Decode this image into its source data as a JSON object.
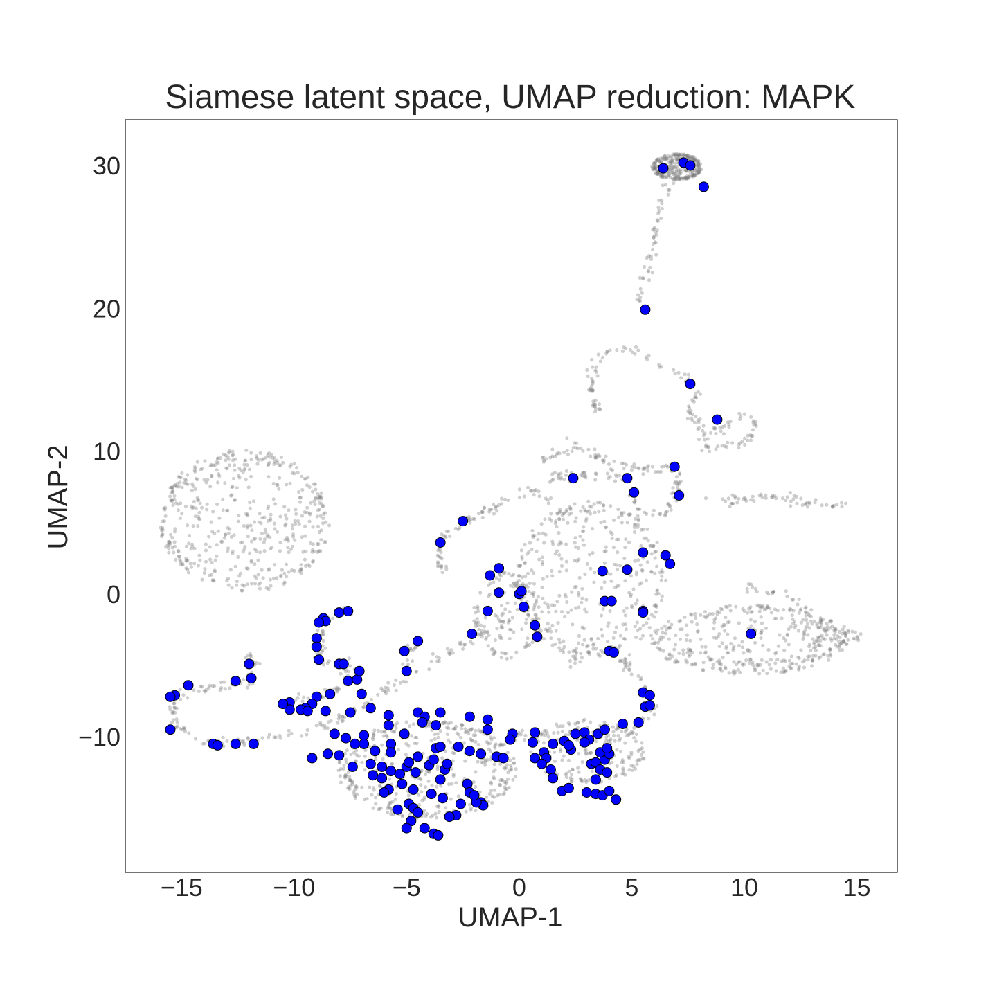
{
  "chart_data": {
    "type": "scatter",
    "title": "Siamese latent space, UMAP reduction: MAPK",
    "xlabel": "UMAP-1",
    "ylabel": "UMAP-2",
    "xlim": [
      -17.5,
      16.8
    ],
    "ylim": [
      -19.5,
      33.2
    ],
    "xticks": [
      -15,
      -10,
      -5,
      0,
      5,
      10,
      15
    ],
    "yticks": [
      -10,
      0,
      10,
      20,
      30
    ],
    "xtick_labels": [
      "−15",
      "−10",
      "−5",
      "0",
      "5",
      "10",
      "15"
    ],
    "ytick_labels": [
      "−10",
      "0",
      "10",
      "20",
      "30"
    ],
    "grid": false,
    "colors": {
      "background_points": "#808080",
      "highlight_points": "#0000ff",
      "highlight_edge": "#000000"
    },
    "background_clusters": [
      {
        "type": "ellipse",
        "cx": -12.2,
        "cy": 5.1,
        "rx": 3.7,
        "ry": 4.9,
        "n": 500
      },
      {
        "type": "ellipse",
        "cx": 7.0,
        "cy": 29.9,
        "rx": 1.1,
        "ry": 0.9,
        "n": 300
      },
      {
        "type": "ellipse",
        "cx": -4.1,
        "cy": -12.3,
        "rx": 3.9,
        "ry": 3.4,
        "n": 450
      },
      {
        "type": "ellipse",
        "cx": 3.2,
        "cy": 1.0,
        "rx": 3.3,
        "ry": 5.4,
        "n": 400
      },
      {
        "type": "ellipse",
        "cx": 10.2,
        "cy": -3.2,
        "rx": 4.3,
        "ry": 2.4,
        "n": 350
      },
      {
        "type": "ellipse",
        "cx": 3.0,
        "cy": -11.0,
        "rx": 2.6,
        "ry": 2.2,
        "n": 180
      },
      {
        "type": "ellipse",
        "cx": -0.5,
        "cy": -1.5,
        "rx": 1.5,
        "ry": 3.0,
        "n": 120
      },
      {
        "type": "path",
        "points": [
          [
            -15.6,
            -8.8
          ],
          [
            -15.1,
            -7.2
          ],
          [
            -13.5,
            -6.5
          ],
          [
            -12.0,
            -6.2
          ],
          [
            -11.8,
            -5.0
          ],
          [
            -11.9,
            -3.9
          ]
        ],
        "n": 70
      },
      {
        "type": "path",
        "points": [
          [
            -15.5,
            -8.8
          ],
          [
            -14.3,
            -10.3
          ],
          [
            -12.8,
            -10.4
          ],
          [
            -11.7,
            -10.2
          ],
          [
            -9.3,
            -9.6
          ],
          [
            -7.0,
            -8.0
          ],
          [
            -5.0,
            -5.8
          ],
          [
            -3.0,
            -4.0
          ],
          [
            -1.5,
            -2.5
          ],
          [
            -0.5,
            -2.0
          ]
        ],
        "n": 140
      },
      {
        "type": "path",
        "points": [
          [
            -10.4,
            -7.8
          ],
          [
            -9.5,
            -7.2
          ],
          [
            -8.3,
            -6.9
          ],
          [
            -7.6,
            -6.0
          ],
          [
            -7.6,
            -5.0
          ],
          [
            -8.2,
            -4.9
          ],
          [
            -8.9,
            -4.5
          ],
          [
            -8.9,
            -3.2
          ],
          [
            -8.9,
            -2.2
          ],
          [
            -8.4,
            -1.4
          ],
          [
            -7.6,
            -1.2
          ]
        ],
        "n": 90
      },
      {
        "type": "path",
        "points": [
          [
            -5.0,
            -5.5
          ],
          [
            -5.0,
            -4.2
          ],
          [
            -4.6,
            -3.4
          ]
        ],
        "n": 18
      },
      {
        "type": "path",
        "points": [
          [
            -3.5,
            3.5
          ],
          [
            -3.2,
            4.5
          ],
          [
            -2.4,
            5.1
          ],
          [
            -0.8,
            6.5
          ],
          [
            0.5,
            7.3
          ],
          [
            1.5,
            6.5
          ]
        ],
        "n": 60
      },
      {
        "type": "path",
        "points": [
          [
            -3.5,
            3.5
          ],
          [
            -3.6,
            2.3
          ],
          [
            -3.2,
            1.8
          ]
        ],
        "n": 18
      },
      {
        "type": "path",
        "points": [
          [
            1.0,
            9.2
          ],
          [
            2.5,
            10.5
          ],
          [
            3.0,
            10.0
          ],
          [
            4.5,
            9.0
          ],
          [
            6.0,
            8.7
          ],
          [
            7.0,
            8.8
          ]
        ],
        "n": 70
      },
      {
        "type": "path",
        "points": [
          [
            1.3,
            8.0
          ],
          [
            2.3,
            8.5
          ],
          [
            4.0,
            8.3
          ],
          [
            5.0,
            8.0
          ]
        ],
        "n": 40
      },
      {
        "type": "path",
        "points": [
          [
            5.0,
            7.0
          ],
          [
            5.3,
            5.6
          ],
          [
            6.5,
            5.5
          ],
          [
            7.0,
            7.0
          ],
          [
            7.1,
            8.8
          ]
        ],
        "n": 45
      },
      {
        "type": "path",
        "points": [
          [
            8.1,
            6.4
          ],
          [
            10.0,
            6.8
          ],
          [
            12.0,
            6.7
          ],
          [
            13.5,
            6.0
          ],
          [
            14.5,
            6.2
          ]
        ],
        "n": 60
      },
      {
        "type": "path",
        "points": [
          [
            2.9,
            15.2
          ],
          [
            3.5,
            16.6
          ],
          [
            4.8,
            17.3
          ],
          [
            6.0,
            16.2
          ],
          [
            7.5,
            15.2
          ],
          [
            7.8,
            14.0
          ],
          [
            7.6,
            12.5
          ],
          [
            8.5,
            11.2
          ],
          [
            8.0,
            10.8
          ],
          [
            10.0,
            12.5
          ],
          [
            10.5,
            12.0
          ],
          [
            10.2,
            10.6
          ],
          [
            8.3,
            10.3
          ]
        ],
        "n": 120
      },
      {
        "type": "path",
        "points": [
          [
            3.7,
            12.3
          ],
          [
            3.1,
            14.0
          ],
          [
            3.4,
            15.8
          ]
        ],
        "n": 30
      },
      {
        "type": "path",
        "points": [
          [
            5.3,
            20.5
          ],
          [
            6.0,
            24.5
          ],
          [
            6.3,
            27.5
          ],
          [
            6.8,
            29.0
          ]
        ],
        "n": 50
      },
      {
        "type": "path",
        "points": [
          [
            2.4,
            -5.0
          ],
          [
            2.5,
            -4.0
          ],
          [
            4.3,
            -4.0
          ],
          [
            5.3,
            -6.0
          ],
          [
            6.0,
            -8.0
          ],
          [
            5.0,
            -9.5
          ],
          [
            3.5,
            -10.0
          ],
          [
            1.5,
            -9.8
          ],
          [
            0.0,
            -9.9
          ],
          [
            -0.5,
            -9.5
          ]
        ],
        "n": 100
      },
      {
        "type": "path",
        "points": [
          [
            10.0,
            0.5
          ],
          [
            12.0,
            0.0
          ],
          [
            13.5,
            -2.5
          ],
          [
            14.5,
            -2.5
          ],
          [
            15.0,
            -3.0
          ],
          [
            14.5,
            -3.7
          ],
          [
            13.5,
            -3.0
          ],
          [
            12.5,
            -4.5
          ],
          [
            11.0,
            -5.0
          ],
          [
            9.5,
            -4.8
          ]
        ],
        "n": 100
      }
    ],
    "highlighted_points": [
      [
        6.4,
        29.8
      ],
      [
        7.3,
        30.2
      ],
      [
        7.6,
        30.0
      ],
      [
        8.2,
        28.5
      ],
      [
        5.6,
        19.9
      ],
      [
        7.6,
        14.7
      ],
      [
        8.8,
        12.2
      ],
      [
        2.4,
        8.1
      ],
      [
        4.8,
        8.1
      ],
      [
        5.1,
        7.1
      ],
      [
        6.9,
        8.9
      ],
      [
        7.1,
        6.9
      ],
      [
        -2.5,
        5.1
      ],
      [
        -3.5,
        3.6
      ],
      [
        -0.9,
        1.8
      ],
      [
        -1.3,
        1.3
      ],
      [
        -0.9,
        0.1
      ],
      [
        -0.0,
        0.0
      ],
      [
        0.1,
        0.2
      ],
      [
        0.2,
        -0.9
      ],
      [
        -1.4,
        -1.2
      ],
      [
        0.7,
        -2.2
      ],
      [
        0.8,
        -3.0
      ],
      [
        -2.1,
        -2.8
      ],
      [
        3.7,
        1.6
      ],
      [
        4.8,
        1.7
      ],
      [
        5.5,
        2.9
      ],
      [
        6.5,
        2.7
      ],
      [
        6.7,
        2.1
      ],
      [
        3.8,
        -0.5
      ],
      [
        4.1,
        -0.5
      ],
      [
        5.5,
        -1.2
      ],
      [
        5.5,
        -1.3
      ],
      [
        4.0,
        -4.0
      ],
      [
        4.2,
        -4.1
      ],
      [
        10.3,
        -2.8
      ],
      [
        -5.1,
        -4.0
      ],
      [
        -4.5,
        -3.3
      ],
      [
        -5.0,
        -5.4
      ],
      [
        -8.7,
        -1.7
      ],
      [
        -8.6,
        -1.9
      ],
      [
        -8.9,
        -2.0
      ],
      [
        -7.6,
        -1.2
      ],
      [
        -8.0,
        -1.3
      ],
      [
        -9.0,
        -3.1
      ],
      [
        -9.0,
        -3.7
      ],
      [
        -8.9,
        -4.6
      ],
      [
        -8.0,
        -4.9
      ],
      [
        -7.8,
        -4.9
      ],
      [
        -7.6,
        -6.1
      ],
      [
        -7.2,
        -6.0
      ],
      [
        -7.1,
        -5.4
      ],
      [
        -8.4,
        -7.0
      ],
      [
        -7.0,
        -7.0
      ],
      [
        -9.0,
        -7.2
      ],
      [
        -9.2,
        -7.7
      ],
      [
        -9.5,
        -8.0
      ],
      [
        -10.2,
        -7.6
      ],
      [
        -10.2,
        -8.1
      ],
      [
        -9.7,
        -8.1
      ],
      [
        -9.4,
        -8.2
      ],
      [
        -10.5,
        -7.7
      ],
      [
        -12.0,
        -4.9
      ],
      [
        -11.9,
        -5.9
      ],
      [
        -12.6,
        -6.1
      ],
      [
        -14.7,
        -6.4
      ],
      [
        -15.3,
        -7.1
      ],
      [
        -15.5,
        -7.2
      ],
      [
        -15.5,
        -9.5
      ],
      [
        -13.6,
        -10.5
      ],
      [
        -13.4,
        -10.6
      ],
      [
        -12.6,
        -10.5
      ],
      [
        -11.8,
        -10.5
      ],
      [
        -8.6,
        -8.2
      ],
      [
        -7.5,
        -8.3
      ],
      [
        -6.6,
        -8.0
      ],
      [
        -8.2,
        -9.8
      ],
      [
        -7.7,
        -10.1
      ],
      [
        -7.3,
        -10.5
      ],
      [
        -6.9,
        -9.9
      ],
      [
        -8.5,
        -11.2
      ],
      [
        -8.0,
        -11.3
      ],
      [
        -7.4,
        -12.1
      ],
      [
        -6.6,
        -11.9
      ],
      [
        -9.2,
        -11.5
      ],
      [
        -6.9,
        -10.5
      ],
      [
        -6.4,
        -11.0
      ],
      [
        -5.8,
        -8.5
      ],
      [
        -5.8,
        -9.2
      ],
      [
        -5.7,
        -10.5
      ],
      [
        -5.7,
        -11.1
      ],
      [
        -4.5,
        -8.3
      ],
      [
        -4.2,
        -8.6
      ],
      [
        -4.3,
        -9.0
      ],
      [
        -3.7,
        -9.2
      ],
      [
        -3.5,
        -8.3
      ],
      [
        -2.2,
        -8.6
      ],
      [
        -1.4,
        -8.8
      ],
      [
        -1.4,
        -9.5
      ],
      [
        -5.1,
        -9.8
      ],
      [
        -3.7,
        -10.8
      ],
      [
        -3.5,
        -10.7
      ],
      [
        -2.7,
        -10.7
      ],
      [
        -2.2,
        -11.0
      ],
      [
        -1.7,
        -11.2
      ],
      [
        -1.0,
        -11.4
      ],
      [
        -0.7,
        -11.5
      ],
      [
        -0.3,
        -9.8
      ],
      [
        -0.4,
        -10.2
      ],
      [
        -6.1,
        -12.1
      ],
      [
        -5.7,
        -12.4
      ],
      [
        -5.0,
        -12.1
      ],
      [
        -4.6,
        -12.5
      ],
      [
        -3.5,
        -13.0
      ],
      [
        -2.3,
        -13.3
      ],
      [
        -2.2,
        -13.9
      ],
      [
        -1.7,
        -14.6
      ],
      [
        -1.6,
        -14.8
      ],
      [
        -5.2,
        -13.3
      ],
      [
        -5.8,
        -13.7
      ],
      [
        -6.0,
        -13.9
      ],
      [
        -4.7,
        -13.7
      ],
      [
        -3.9,
        -14.0
      ],
      [
        -3.4,
        -14.3
      ],
      [
        -2.6,
        -14.7
      ],
      [
        -2.8,
        -15.5
      ],
      [
        -4.9,
        -14.7
      ],
      [
        -4.7,
        -15.0
      ],
      [
        -5.4,
        -15.1
      ],
      [
        -4.5,
        -15.3
      ],
      [
        -4.8,
        -15.9
      ],
      [
        -5.0,
        -16.4
      ],
      [
        -4.2,
        -16.4
      ],
      [
        -3.8,
        -16.8
      ],
      [
        -3.6,
        -16.9
      ],
      [
        -3.1,
        -15.6
      ],
      [
        -1.9,
        -14.6
      ],
      [
        -2.0,
        -14.1
      ],
      [
        -4.0,
        -12.0
      ],
      [
        -3.3,
        -12.3
      ],
      [
        -4.5,
        -11.4
      ],
      [
        -4.9,
        -11.8
      ],
      [
        -6.5,
        -12.7
      ],
      [
        -6.1,
        -12.9
      ],
      [
        -5.3,
        -12.6
      ],
      [
        -3.8,
        -11.6
      ],
      [
        -3.2,
        -11.9
      ],
      [
        0.7,
        -9.7
      ],
      [
        1.5,
        -10.5
      ],
      [
        2.0,
        -10.3
      ],
      [
        2.5,
        -9.8
      ],
      [
        2.9,
        -9.7
      ],
      [
        3.1,
        -10.2
      ],
      [
        3.5,
        -9.8
      ],
      [
        3.8,
        -9.5
      ],
      [
        4.6,
        -9.1
      ],
      [
        5.3,
        -9.0
      ],
      [
        5.6,
        -7.9
      ],
      [
        5.5,
        -6.9
      ],
      [
        5.8,
        -7.1
      ],
      [
        5.8,
        -7.8
      ],
      [
        0.6,
        -10.4
      ],
      [
        1.1,
        -11.1
      ],
      [
        1.2,
        -11.5
      ],
      [
        0.7,
        -11.5
      ],
      [
        1.0,
        -11.9
      ],
      [
        1.4,
        -12.3
      ],
      [
        1.5,
        -12.9
      ],
      [
        1.9,
        -13.8
      ],
      [
        2.2,
        -13.6
      ],
      [
        2.3,
        -10.9
      ],
      [
        2.2,
        -10.6
      ],
      [
        2.9,
        -10.4
      ],
      [
        3.2,
        -11.9
      ],
      [
        3.4,
        -11.8
      ],
      [
        3.6,
        -12.3
      ],
      [
        3.9,
        -12.5
      ],
      [
        3.8,
        -11.6
      ],
      [
        3.4,
        -13.0
      ],
      [
        3.0,
        -13.9
      ],
      [
        3.4,
        -14.0
      ],
      [
        3.7,
        -14.1
      ],
      [
        4.0,
        -13.8
      ],
      [
        4.3,
        -14.4
      ],
      [
        3.6,
        -11.1
      ],
      [
        4.0,
        -11.2
      ],
      [
        3.9,
        -10.8
      ]
    ]
  }
}
